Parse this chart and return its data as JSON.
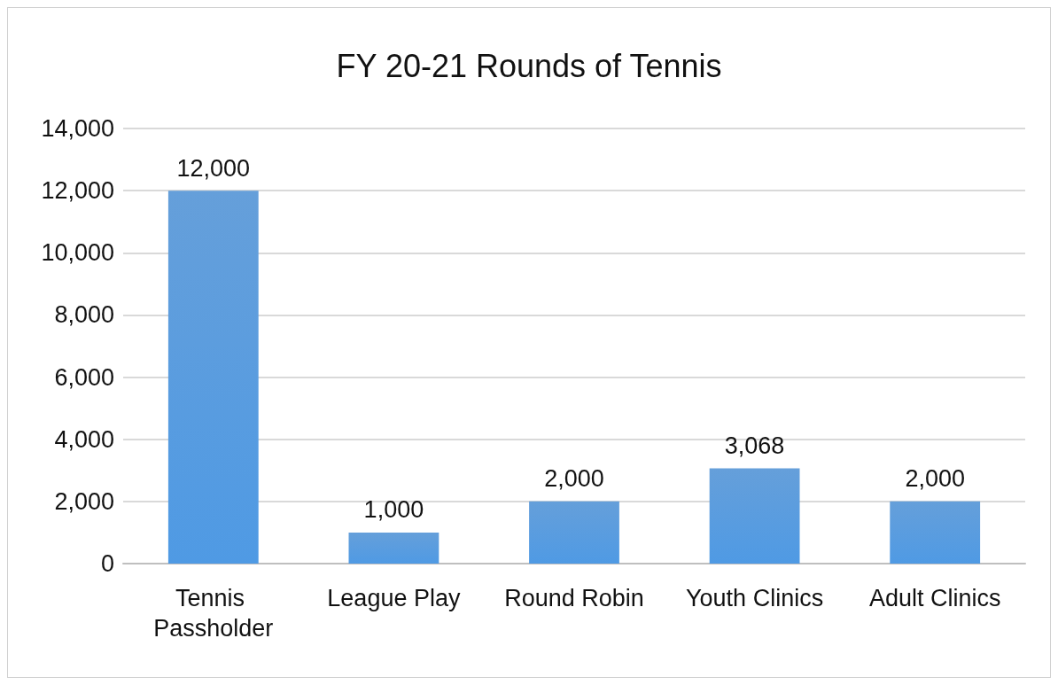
{
  "chart_data": {
    "type": "bar",
    "title": "FY 20-21 Rounds of Tennis",
    "categories": [
      "Tennis Passholder",
      "League Play",
      "Round Robin",
      "Youth Clinics",
      "Adult Clinics"
    ],
    "values": [
      12000,
      1000,
      2000,
      3068,
      2000
    ],
    "value_labels": [
      "12,000",
      "1,000",
      "2,000",
      "3,068",
      "2,000"
    ],
    "color": "#4a8fd4",
    "ylim": [
      0,
      14000
    ],
    "yticks": [
      {
        "value": 0,
        "label": "0"
      },
      {
        "value": 2000,
        "label": "2,000"
      },
      {
        "value": 4000,
        "label": "4,000"
      },
      {
        "value": 6000,
        "label": "6,000"
      },
      {
        "value": 8000,
        "label": "8,000"
      },
      {
        "value": 10000,
        "label": "10,000"
      },
      {
        "value": 12000,
        "label": "12,000"
      },
      {
        "value": 14000,
        "label": "14,000"
      }
    ],
    "grid": "y"
  }
}
